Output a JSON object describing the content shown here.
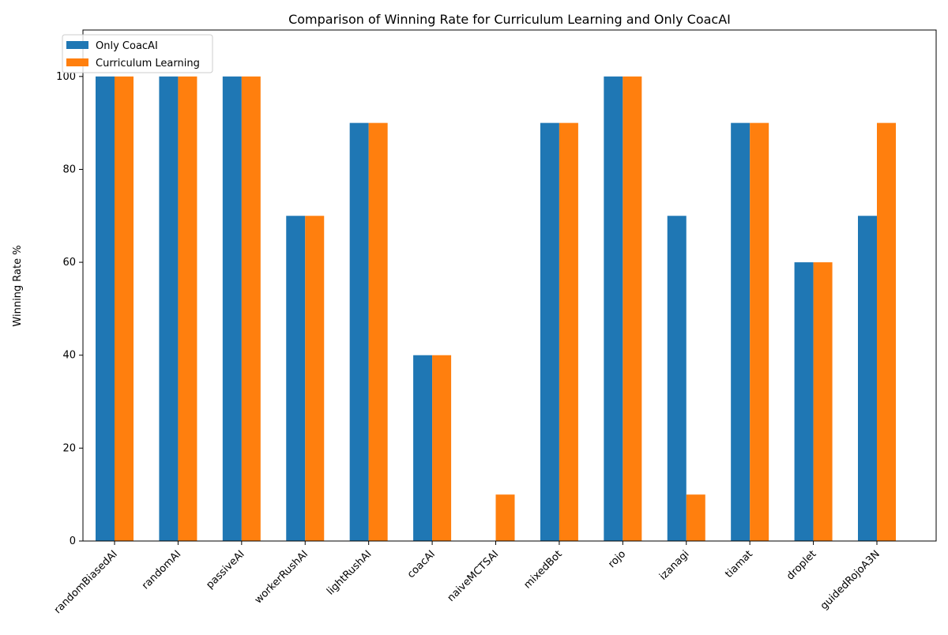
{
  "chart_data": {
    "type": "bar",
    "title": "Comparison of Winning Rate for Curriculum Learning and Only CoacAI",
    "xlabel": "",
    "ylabel": "Winning Rate %",
    "ylim": [
      0,
      110
    ],
    "yticks": [
      "0",
      "20",
      "40",
      "60",
      "80",
      "100"
    ],
    "grid": false,
    "legend_position": "top-left",
    "categories": [
      "randomBiasedAI",
      "randomAI",
      "passiveAI",
      "workerRushAI",
      "lightRushAI",
      "coacAI",
      "naiveMCTSAI",
      "mixedBot",
      "rojo",
      "izanagi",
      "tiamat",
      "droplet",
      "guidedRojoA3N"
    ],
    "series": [
      {
        "name": "Only CoacAI",
        "color": "#1f77b4",
        "values": [
          100,
          100,
          100,
          70,
          90,
          40,
          0,
          90,
          100,
          70,
          90,
          60,
          70
        ]
      },
      {
        "name": "Curriculum Learning",
        "color": "#ff7f0e",
        "values": [
          100,
          100,
          100,
          70,
          90,
          40,
          10,
          90,
          100,
          10,
          90,
          60,
          90
        ]
      }
    ]
  }
}
